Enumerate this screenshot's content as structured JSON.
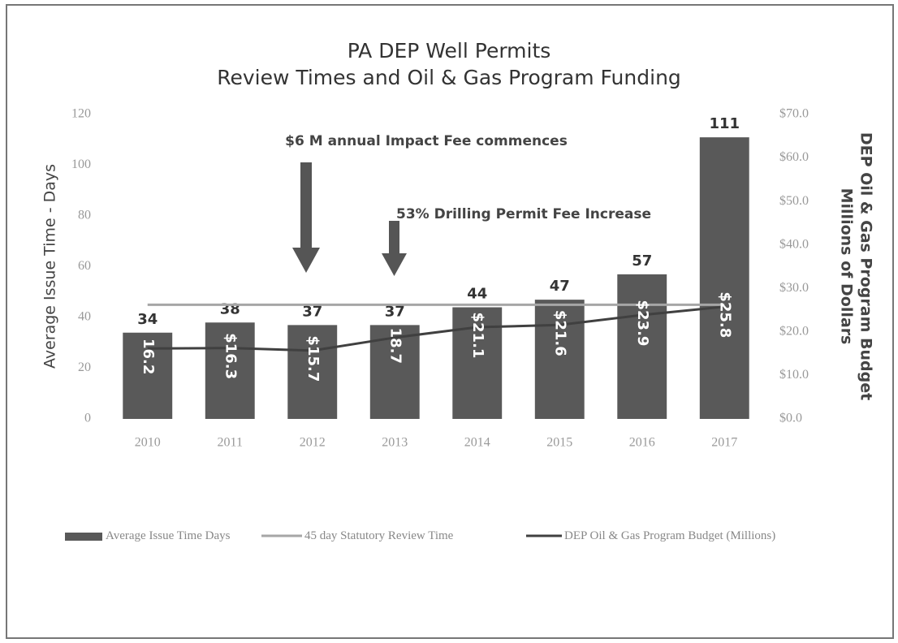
{
  "chart_data": {
    "type": "bar",
    "title": "PA DEP Well Permits",
    "subtitle": "Review Times and Oil & Gas Program Funding",
    "y_label": "Average Issue Time - Days",
    "y2_label": [
      "DEP Oil & Gas Program Budget",
      "Millions of Dollars"
    ],
    "categories": [
      "2010",
      "2011",
      "2012",
      "2013",
      "2014",
      "2015",
      "2016",
      "2017"
    ],
    "series": [
      {
        "name": "Average Issue Time Days",
        "type": "bar",
        "color": "#595959",
        "values": [
          34,
          38,
          37,
          37,
          44,
          47,
          57,
          111
        ]
      },
      {
        "name": "45 day Statutory Review Time",
        "type": "line",
        "color": "#a6a6a6",
        "values": [
          45,
          45,
          45,
          45,
          45,
          45,
          45,
          45
        ]
      },
      {
        "name": "DEP Oil & Gas Program Budget (Millions)",
        "type": "line",
        "axis": "y2",
        "color": "#404040",
        "values": [
          16.2,
          16.3,
          15.7,
          18.7,
          21.1,
          21.6,
          23.9,
          25.8
        ],
        "value_labels": [
          "16.2",
          "$16.3",
          "$15.7",
          "18.7",
          "$21.1",
          "$21.6",
          "$23.9",
          "$25.8"
        ]
      }
    ],
    "ylim": [
      0,
      120
    ],
    "yticks": [
      0,
      20,
      40,
      60,
      80,
      100,
      120
    ],
    "y2lim": [
      0,
      70
    ],
    "y2ticks": [
      {
        "value": 0,
        "label": "$0.0"
      },
      {
        "value": 10,
        "label": "$10.0"
      },
      {
        "value": 20,
        "label": "$20.0"
      },
      {
        "value": 30,
        "label": "$30.0"
      },
      {
        "value": 40,
        "label": "$40.0"
      },
      {
        "value": 50,
        "label": "$50.0"
      },
      {
        "value": 60,
        "label": "$60.0"
      },
      {
        "value": 70,
        "label": "$70.0"
      }
    ],
    "annotations": [
      "$6 M annual Impact Fee commences",
      "53% Drilling Permit Fee Increase"
    ],
    "legend": "bottom"
  }
}
